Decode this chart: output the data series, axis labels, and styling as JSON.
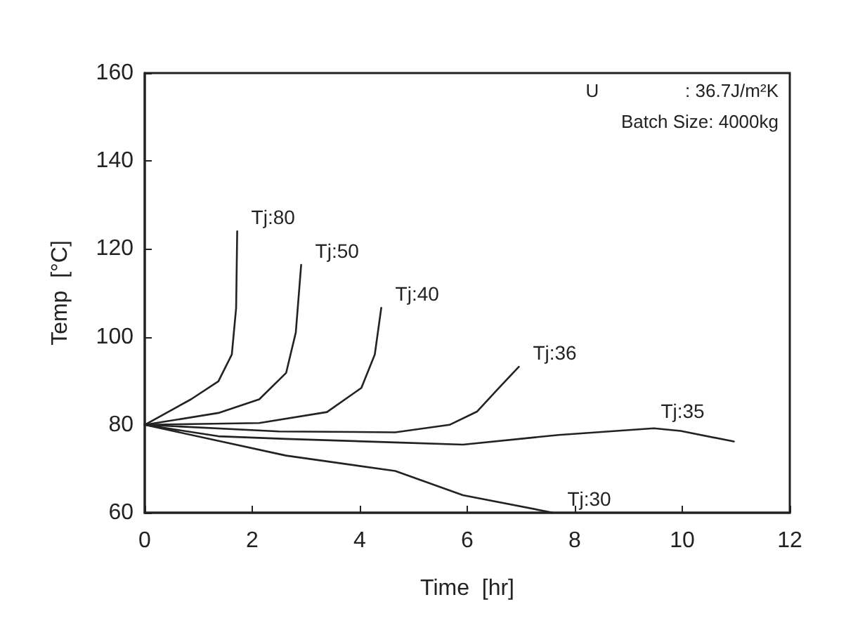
{
  "chart_data": {
    "type": "line",
    "xlabel": "Time  [hr]",
    "ylabel": "Temp  [°C]",
    "xlim": [
      0,
      12
    ],
    "xticks": [
      0,
      2,
      4,
      6,
      8,
      10,
      12
    ],
    "ylim": [
      60,
      160
    ],
    "yticks": [
      60,
      80,
      100,
      120,
      140,
      160
    ],
    "grid": false,
    "legend": false,
    "marker": "none",
    "line_style": "solid",
    "annotations": [
      "U                 : 36.7J/m²K",
      "Batch Size: 4000kg"
    ],
    "series": [
      {
        "name": "Tj:80",
        "color": "#222222",
        "x": [
          0,
          0.86,
          1.37,
          1.62,
          1.7,
          1.72
        ],
        "values": [
          80,
          85.8,
          89.9,
          96,
          106.6,
          124
        ]
      },
      {
        "name": "Tj:50",
        "color": "#222222",
        "x": [
          0,
          1.37,
          2.13,
          2.63,
          2.81,
          2.91
        ],
        "values": [
          80,
          82.7,
          85.8,
          91.8,
          101,
          116.4
        ]
      },
      {
        "name": "Tj:40",
        "color": "#222222",
        "x": [
          0,
          2.13,
          3.39,
          4.03,
          4.28,
          4.4
        ],
        "values": [
          80,
          80.4,
          82.9,
          88.4,
          96,
          106.6
        ]
      },
      {
        "name": "Tj:36",
        "color": "#222222",
        "x": [
          0,
          2.5,
          4.66,
          5.67,
          6.18,
          6.56,
          6.96
        ],
        "values": [
          80,
          78.5,
          78.3,
          80,
          83,
          88,
          93.2
        ]
      },
      {
        "name": "Tj:35",
        "color": "#222222",
        "x": [
          0,
          1.37,
          2.63,
          4.66,
          5.92,
          7.7,
          9.47,
          9.97,
          10.96
        ],
        "values": [
          80,
          77.4,
          76.8,
          76,
          75.5,
          77.7,
          79.2,
          78.6,
          76.2
        ]
      },
      {
        "name": "Tj:30",
        "color": "#222222",
        "x": [
          0,
          2.63,
          4.66,
          5.92,
          7.6
        ],
        "values": [
          80,
          73,
          69.5,
          64,
          60
        ]
      }
    ]
  }
}
